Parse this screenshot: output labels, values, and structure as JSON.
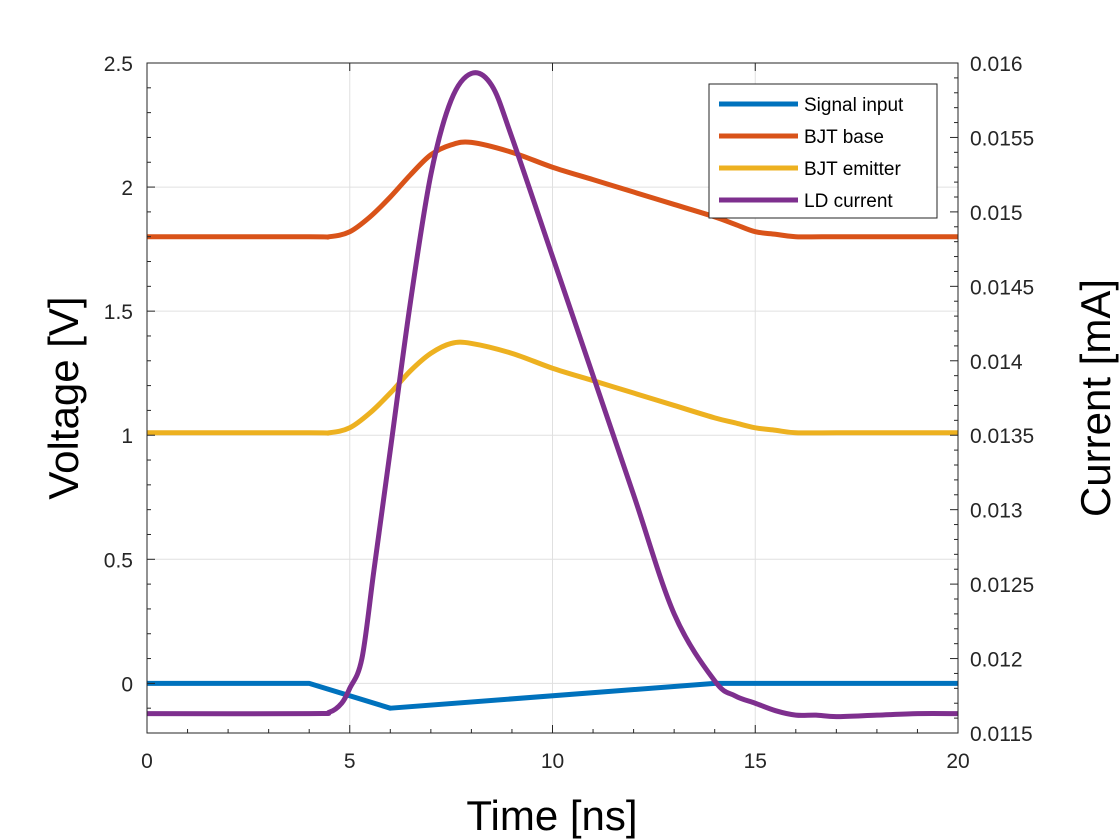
{
  "chart_data": {
    "type": "line",
    "xlabel": "Time [ns]",
    "ylabel_left": "Voltage [V]",
    "ylabel_right": "Current [mA]",
    "xlim": [
      0,
      20
    ],
    "ylim_left": [
      -0.2,
      2.5
    ],
    "ylim_right": [
      0.0115,
      0.016
    ],
    "grid": true,
    "legend_position": "top-right",
    "x_ticks": [
      0,
      5,
      10,
      15,
      20
    ],
    "x_tick_labels": [
      "0",
      "5",
      "10",
      "15",
      "20"
    ],
    "y_left_ticks": [
      0,
      0.5,
      1,
      1.5,
      2,
      2.5
    ],
    "y_left_tick_labels": [
      "0",
      "0.5",
      "1",
      "1.5",
      "2",
      "2.5"
    ],
    "y_right_ticks": [
      0.0115,
      0.012,
      0.0125,
      0.013,
      0.0135,
      0.014,
      0.0145,
      0.015,
      0.0155,
      0.016
    ],
    "y_right_tick_labels": [
      "0.0115",
      "0.012",
      "0.0125",
      "0.013",
      "0.0135",
      "0.014",
      "0.0145",
      "0.015",
      "0.0155",
      "0.016"
    ],
    "series": [
      {
        "name": "Signal input",
        "axis": "left",
        "color": "#0072BD",
        "x": [
          0,
          4,
          6,
          14,
          20
        ],
        "y": [
          0,
          0,
          -0.1,
          0,
          0
        ]
      },
      {
        "name": "BJT base",
        "axis": "left",
        "color": "#D95319",
        "x": [
          0,
          4,
          4.5,
          5,
          5.5,
          6,
          6.5,
          7,
          7.5,
          8,
          9,
          10,
          11,
          12,
          13,
          14,
          14.5,
          15,
          15.5,
          16,
          17,
          18,
          19,
          20
        ],
        "y": [
          1.8,
          1.8,
          1.8,
          1.82,
          1.88,
          1.96,
          2.05,
          2.13,
          2.17,
          2.18,
          2.14,
          2.08,
          2.03,
          1.98,
          1.93,
          1.88,
          1.85,
          1.82,
          1.81,
          1.8,
          1.8,
          1.8,
          1.8,
          1.8
        ]
      },
      {
        "name": "BJT emitter",
        "axis": "left",
        "color": "#EDB120",
        "x": [
          0,
          4,
          4.5,
          5,
          5.5,
          6,
          6.5,
          7,
          7.5,
          8,
          9,
          10,
          11,
          12,
          13,
          14,
          14.5,
          15,
          15.5,
          16,
          17,
          18,
          19,
          20
        ],
        "y": [
          1.01,
          1.01,
          1.01,
          1.03,
          1.09,
          1.17,
          1.26,
          1.33,
          1.37,
          1.37,
          1.33,
          1.27,
          1.22,
          1.17,
          1.12,
          1.07,
          1.05,
          1.03,
          1.02,
          1.01,
          1.01,
          1.01,
          1.01,
          1.01
        ]
      },
      {
        "name": "LD current",
        "axis": "right",
        "color": "#7E2F8E",
        "x": [
          0,
          4,
          4.5,
          4.8,
          5,
          5.3,
          5.6,
          6,
          6.5,
          7,
          7.5,
          8,
          8.5,
          9,
          10,
          11,
          12,
          13,
          14,
          14.5,
          15,
          15.5,
          16,
          16.5,
          17,
          18,
          19,
          20
        ],
        "y": [
          0.01163,
          0.01163,
          0.01164,
          0.0117,
          0.0118,
          0.012,
          0.0126,
          0.0134,
          0.0144,
          0.01525,
          0.01575,
          0.01593,
          0.01585,
          0.0155,
          0.0147,
          0.0139,
          0.0131,
          0.0123,
          0.01185,
          0.01175,
          0.0117,
          0.01165,
          0.01162,
          0.01162,
          0.01161,
          0.01162,
          0.01163,
          0.01163
        ]
      }
    ]
  }
}
